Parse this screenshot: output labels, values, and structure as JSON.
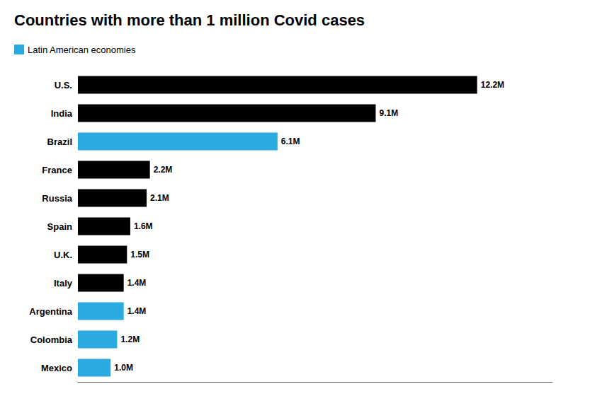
{
  "chart_data": {
    "type": "bar",
    "title": "Countries with more than 1 million Covid cases",
    "orientation": "horizontal",
    "categories": [
      "U.S.",
      "India",
      "Brazil",
      "France",
      "Russia",
      "Spain",
      "U.K.",
      "Italy",
      "Argentina",
      "Colombia",
      "Mexico"
    ],
    "series": [
      {
        "name": "Latin American economies",
        "color": "#29abe2",
        "values": [
          null,
          null,
          6.1,
          null,
          null,
          null,
          null,
          null,
          1.4,
          1.2,
          1.0
        ],
        "value_labels": [
          null,
          null,
          "6.1M",
          null,
          null,
          null,
          null,
          null,
          "1.4M",
          "1.2M",
          "1.0M"
        ]
      },
      {
        "color": "#000000",
        "values": [
          12.2,
          9.1,
          null,
          2.2,
          2.1,
          1.6,
          1.5,
          1.4,
          null,
          null,
          null
        ],
        "value_labels": [
          "12.2M",
          "9.1M",
          null,
          "2.2M",
          "2.1M",
          "1.6M",
          "1.5M",
          "1.4M",
          null,
          null,
          null
        ]
      }
    ],
    "xlim": [
      0,
      14.5
    ],
    "data_labels": true,
    "tick_labels": "y",
    "grid": false,
    "legend": "upper left"
  }
}
